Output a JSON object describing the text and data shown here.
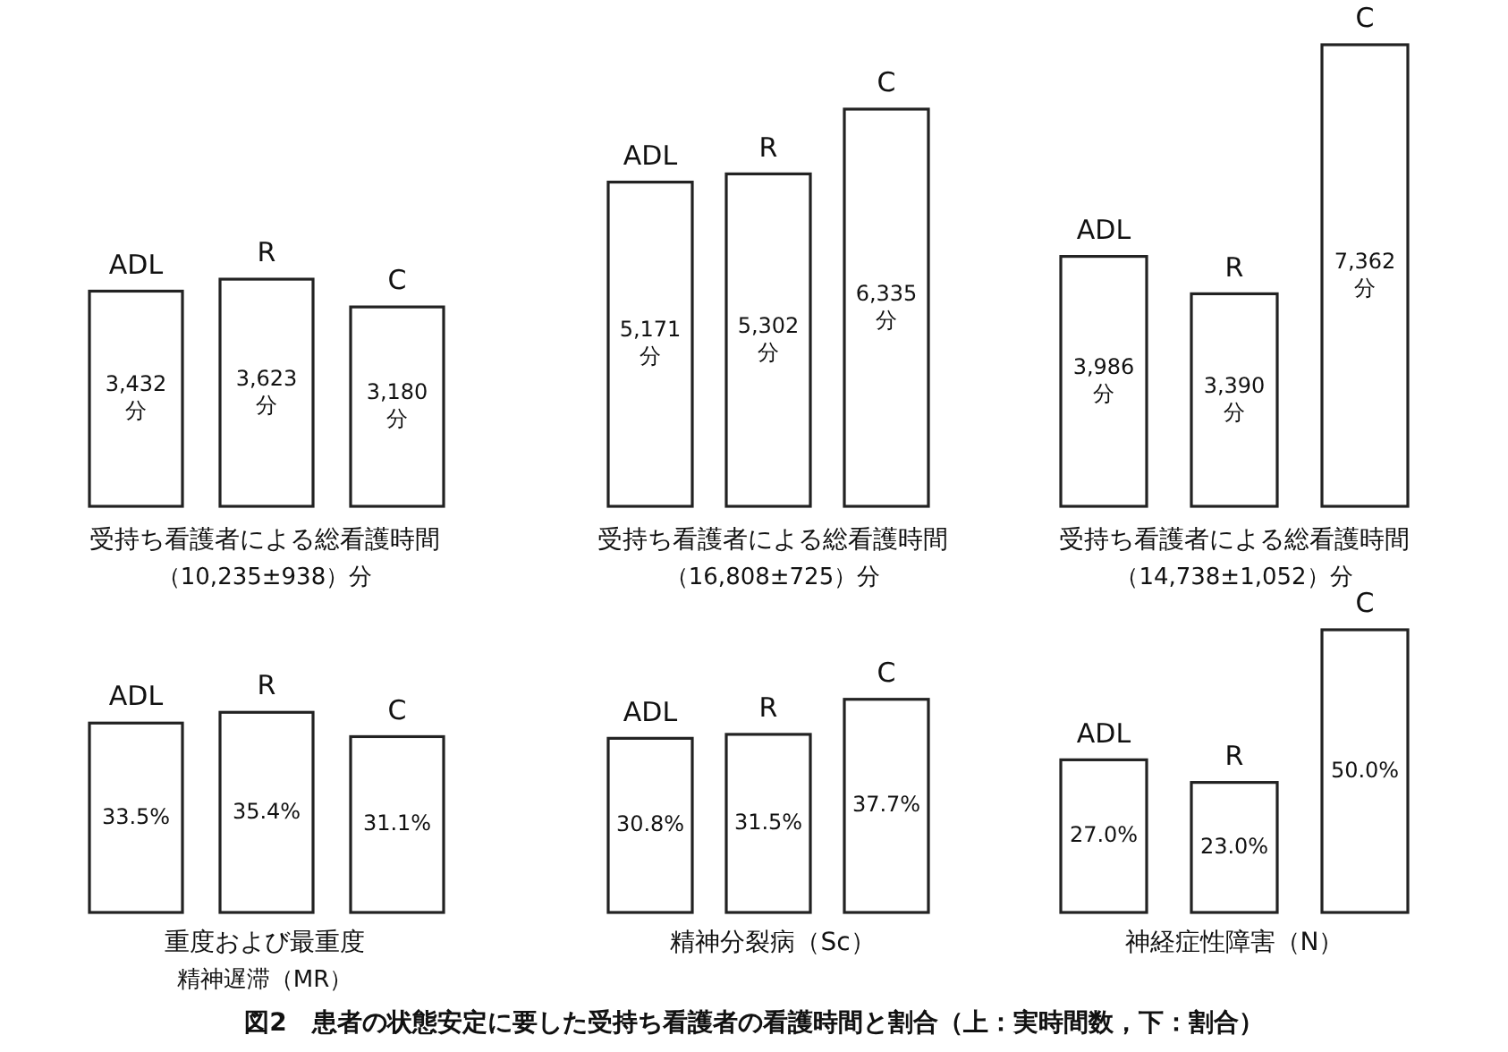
{
  "chart_data": [
    {
      "type": "bar",
      "categories": [
        "ADL",
        "R",
        "C"
      ],
      "values": [
        3432,
        3623,
        3180
      ],
      "color": "#ffffff",
      "value_labels": [
        "3,432\n分",
        "3,623\n分",
        "3,180\n分"
      ],
      "xlabel": "受持ち看護者による総看護時間",
      "annotations": [
        "（10,235±938）分"
      ]
    },
    {
      "type": "bar",
      "categories": [
        "ADL",
        "R",
        "C"
      ],
      "values": [
        5171,
        5302,
        6335
      ],
      "color": "#ffffff",
      "value_labels": [
        "5,171\n分",
        "5,302\n分",
        "6,335\n分"
      ],
      "xlabel": "受持ち看護者による総看護時間",
      "annotations": [
        "（16,808±725）分"
      ]
    },
    {
      "type": "bar",
      "categories": [
        "ADL",
        "R",
        "C"
      ],
      "values": [
        3986,
        3390,
        7362
      ],
      "color": "#ffffff",
      "value_labels": [
        "3,986\n分",
        "3,390\n分",
        "7,362\n分"
      ],
      "xlabel": "受持ち看護者による総看護時間",
      "annotations": [
        "（14,738±1,052）分"
      ]
    },
    {
      "type": "bar",
      "categories": [
        "ADL",
        "R",
        "C"
      ],
      "values": [
        33.5,
        35.4,
        31.1
      ],
      "color": "#ffffff",
      "value_labels": [
        "33.5%",
        "35.4%",
        "31.1%"
      ],
      "xlabel": "重度および最重度",
      "annotations": [
        "精神遅滞（MR）"
      ]
    },
    {
      "type": "bar",
      "categories": [
        "ADL",
        "R",
        "C"
      ],
      "values": [
        30.8,
        31.5,
        37.7
      ],
      "color": "#ffffff",
      "value_labels": [
        "30.8%",
        "31.5%",
        "37.7%"
      ],
      "xlabel": "精神分裂病（Sc）"
    },
    {
      "type": "bar",
      "categories": [
        "ADL",
        "R",
        "C"
      ],
      "values": [
        27.0,
        23.0,
        50.0
      ],
      "color": "#ffffff",
      "value_labels": [
        "27.0%",
        "23.0%",
        "50.0%"
      ],
      "xlabel": "神経症性障害（N）",
      "annotations": [
        "図2　患者の状態安定に要した受持ち看護者の看護時間と割合（上：実時間数，下：割合）"
      ]
    }
  ]
}
